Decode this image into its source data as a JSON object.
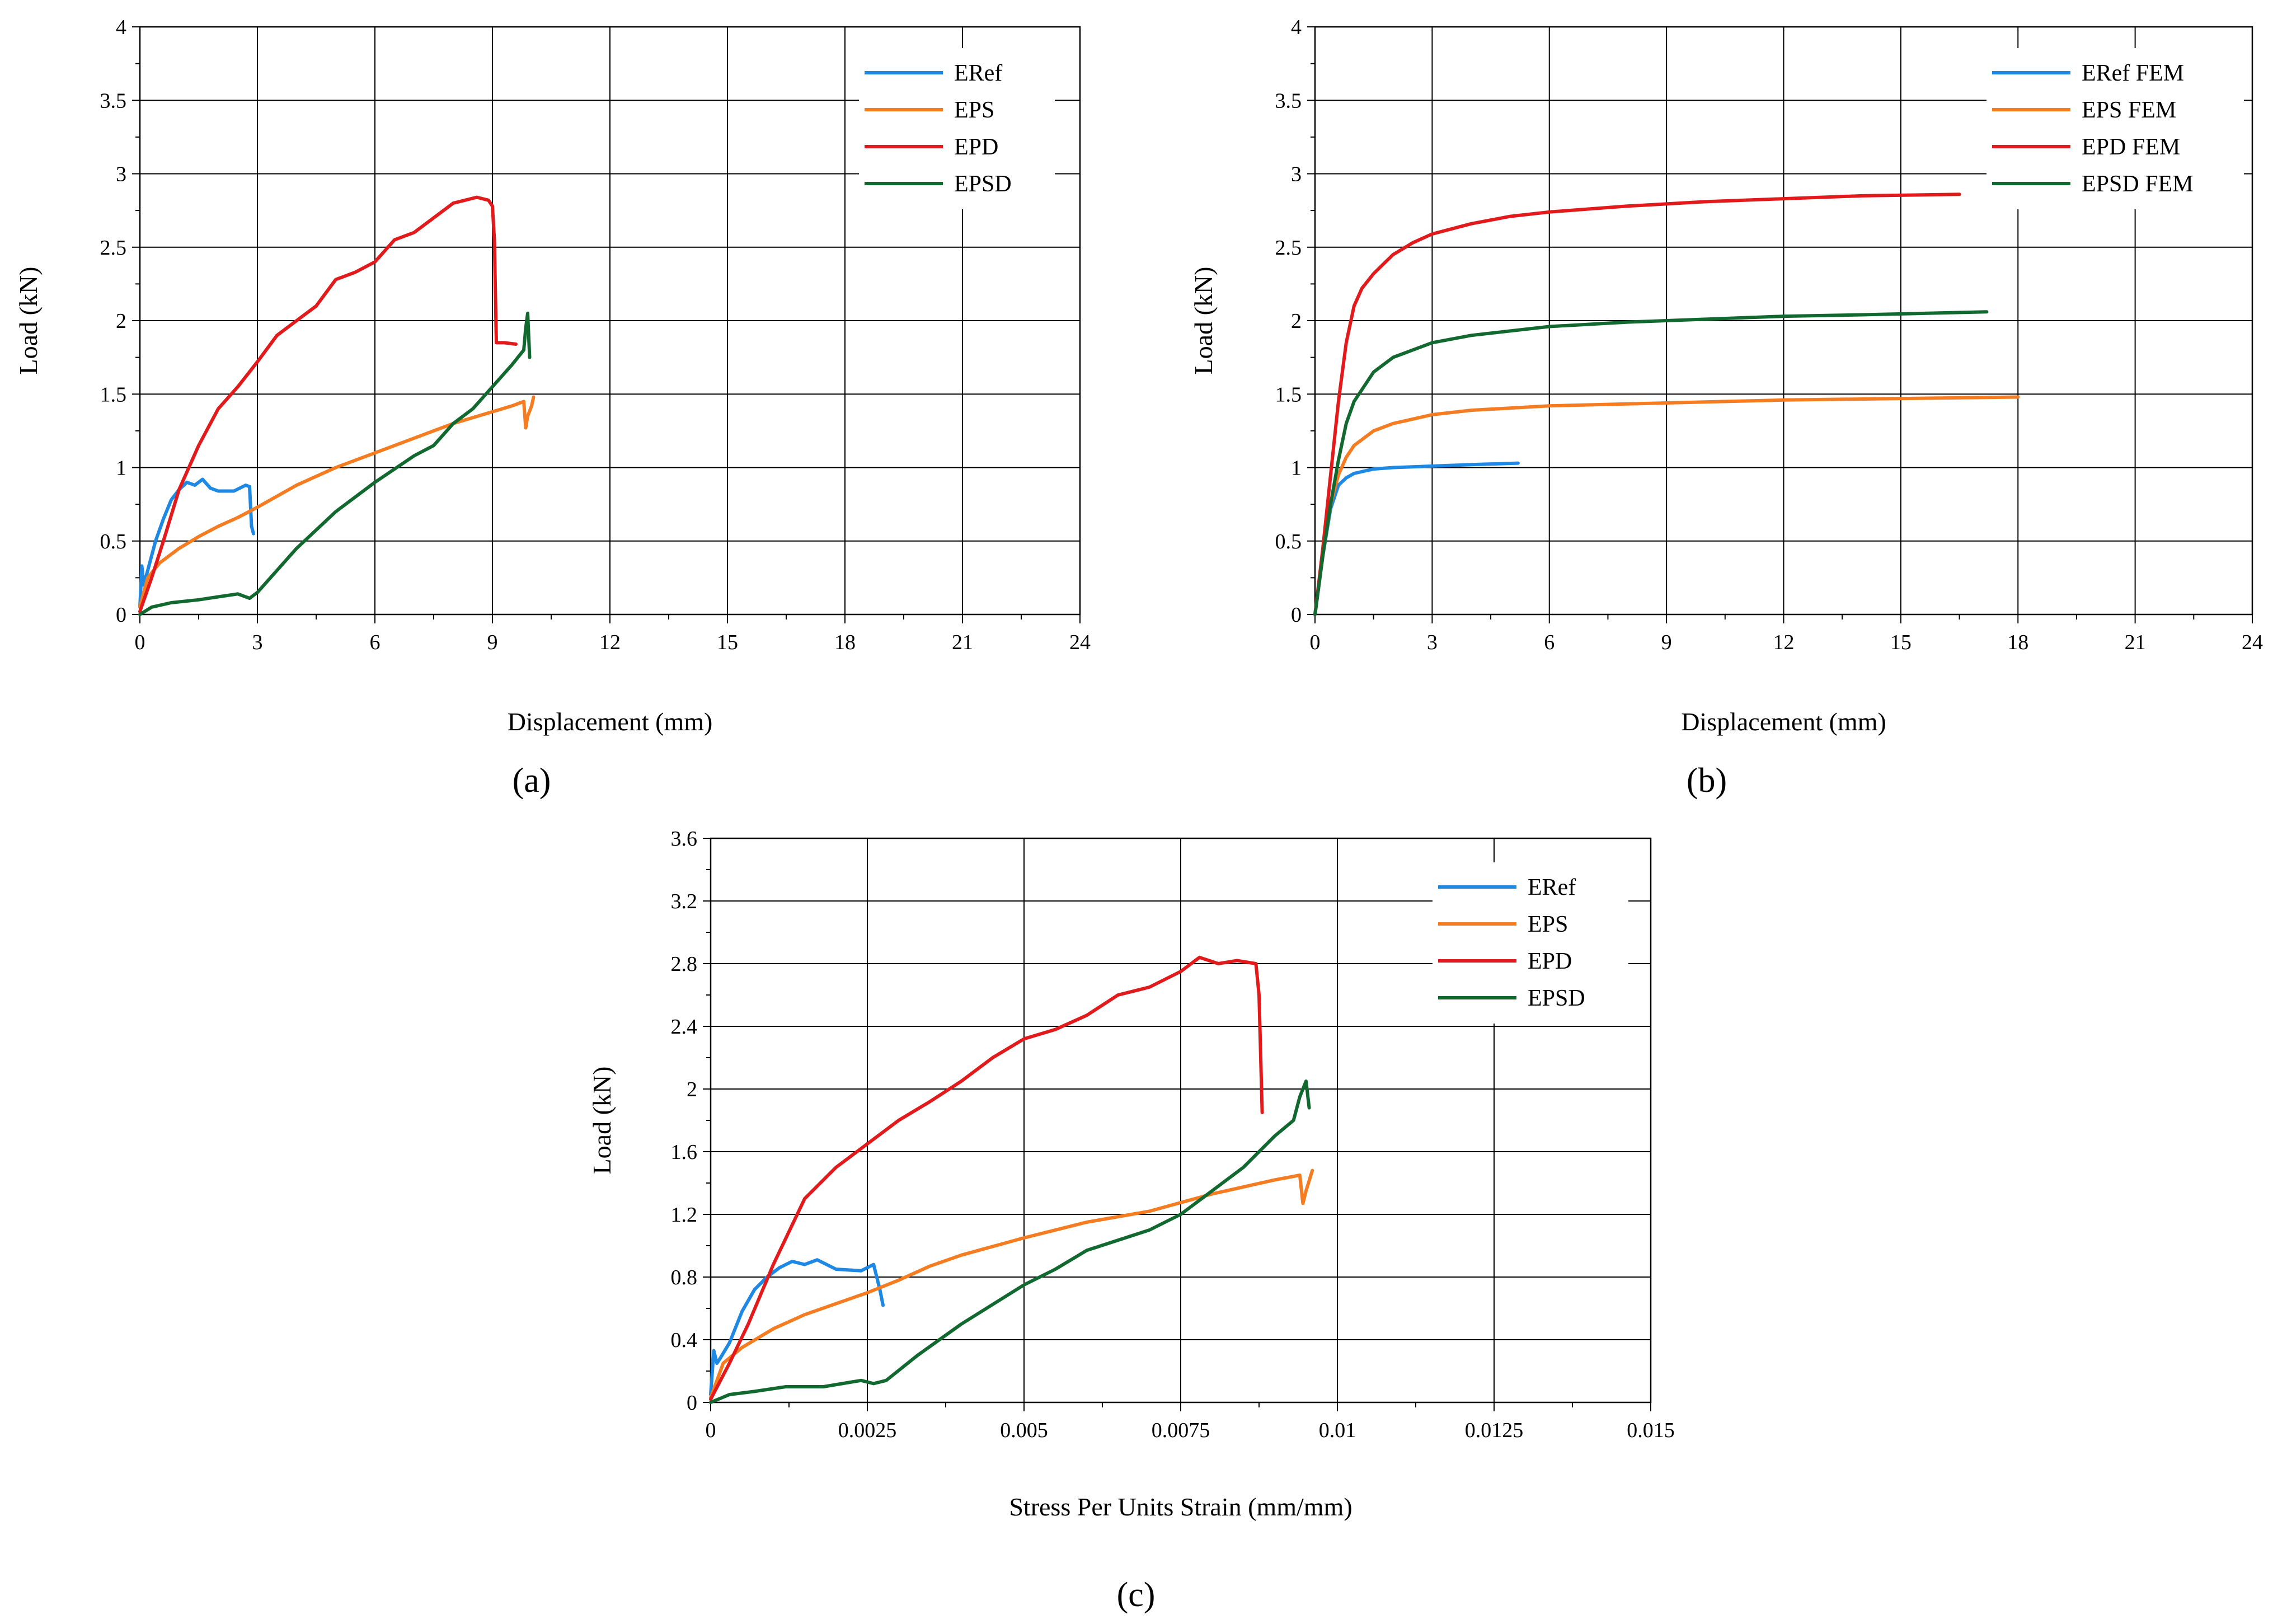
{
  "chart_data": [
    {
      "panel_label": "(a)",
      "type": "line",
      "xlabel": "Displacement (mm)",
      "ylabel": "Load (kN)",
      "xlim": [
        0,
        24
      ],
      "ylim": [
        0,
        4
      ],
      "xticks": [
        0,
        3,
        6,
        9,
        12,
        15,
        18,
        21,
        24
      ],
      "xtick_labels": [
        "0",
        "3",
        "6",
        "9",
        "12",
        "15",
        "18",
        "21",
        "24"
      ],
      "yticks": [
        0,
        0.5,
        1,
        1.5,
        2,
        2.5,
        3,
        3.5,
        4
      ],
      "ytick_labels": [
        "0",
        "0.5",
        "1",
        "1.5",
        "2",
        "2.5",
        "3",
        "3.5",
        "4"
      ],
      "grid": true,
      "legend": "top-right",
      "series": [
        {
          "name": "ERef",
          "color": "#1e88e5",
          "x": [
            0,
            0.05,
            0.1,
            0.15,
            0.25,
            0.4,
            0.6,
            0.8,
            1.0,
            1.2,
            1.4,
            1.6,
            1.8,
            2.0,
            2.4,
            2.7,
            2.8,
            2.85,
            2.9
          ],
          "y": [
            0.05,
            0.33,
            0.2,
            0.25,
            0.35,
            0.5,
            0.65,
            0.78,
            0.85,
            0.9,
            0.88,
            0.92,
            0.86,
            0.84,
            0.84,
            0.88,
            0.87,
            0.6,
            0.55
          ]
        },
        {
          "name": "EPS",
          "color": "#f57c20",
          "x": [
            0,
            0.2,
            0.5,
            1.0,
            1.5,
            2.0,
            2.5,
            3.0,
            4.0,
            5.0,
            6.0,
            7.0,
            8.0,
            9.0,
            9.5,
            9.8,
            9.85,
            9.9,
            10.0,
            10.05
          ],
          "y": [
            0.05,
            0.25,
            0.35,
            0.45,
            0.53,
            0.6,
            0.66,
            0.73,
            0.88,
            1.0,
            1.1,
            1.2,
            1.3,
            1.38,
            1.42,
            1.45,
            1.27,
            1.35,
            1.42,
            1.48
          ]
        },
        {
          "name": "EPD",
          "color": "#e31a1c",
          "x": [
            0,
            0.3,
            0.6,
            1.0,
            1.5,
            2.0,
            2.5,
            3.0,
            3.5,
            4.0,
            4.5,
            5.0,
            5.5,
            6.0,
            6.5,
            7.0,
            7.5,
            8.0,
            8.3,
            8.6,
            8.9,
            9.0,
            9.05,
            9.1,
            9.3,
            9.6
          ],
          "y": [
            0.02,
            0.25,
            0.5,
            0.85,
            1.15,
            1.4,
            1.55,
            1.72,
            1.9,
            2.0,
            2.1,
            2.28,
            2.33,
            2.4,
            2.55,
            2.6,
            2.7,
            2.8,
            2.82,
            2.84,
            2.82,
            2.78,
            2.55,
            1.85,
            1.85,
            1.84
          ]
        },
        {
          "name": "EPSD",
          "color": "#12692f",
          "x": [
            0,
            0.3,
            0.8,
            1.5,
            2.0,
            2.5,
            2.8,
            3.0,
            3.5,
            4.0,
            5.0,
            6.0,
            7.0,
            7.5,
            8.0,
            8.5,
            9.0,
            9.5,
            9.8,
            9.85,
            9.9,
            9.95
          ],
          "y": [
            0.0,
            0.05,
            0.08,
            0.1,
            0.12,
            0.14,
            0.11,
            0.15,
            0.3,
            0.45,
            0.7,
            0.9,
            1.08,
            1.15,
            1.3,
            1.4,
            1.55,
            1.7,
            1.8,
            1.95,
            2.05,
            1.75
          ]
        }
      ]
    },
    {
      "panel_label": "(b)",
      "type": "line",
      "xlabel": "Displacement (mm)",
      "ylabel": "Load (kN)",
      "xlim": [
        0,
        24
      ],
      "ylim": [
        0,
        4
      ],
      "xticks": [
        0,
        3,
        6,
        9,
        12,
        15,
        18,
        21,
        24
      ],
      "xtick_labels": [
        "0",
        "3",
        "6",
        "9",
        "12",
        "15",
        "18",
        "21",
        "24"
      ],
      "yticks": [
        0,
        0.5,
        1,
        1.5,
        2,
        2.5,
        3,
        3.5,
        4
      ],
      "ytick_labels": [
        "0",
        "0.5",
        "1",
        "1.5",
        "2",
        "2.5",
        "3",
        "3.5",
        "4"
      ],
      "grid": true,
      "legend": "top-right",
      "series": [
        {
          "name": "ERef FEM",
          "color": "#1e88e5",
          "x": [
            0,
            0.2,
            0.4,
            0.6,
            0.8,
            1.0,
            1.5,
            2.0,
            3.0,
            4.0,
            5.2
          ],
          "y": [
            0,
            0.4,
            0.72,
            0.88,
            0.93,
            0.96,
            0.99,
            1.0,
            1.01,
            1.02,
            1.03
          ]
        },
        {
          "name": "EPS FEM",
          "color": "#f57c20",
          "x": [
            0,
            0.2,
            0.4,
            0.6,
            0.8,
            1.0,
            1.5,
            2.0,
            3.0,
            4.0,
            6.0,
            9.0,
            12.0,
            15.0,
            18.0
          ],
          "y": [
            0,
            0.4,
            0.75,
            0.95,
            1.07,
            1.15,
            1.25,
            1.3,
            1.36,
            1.39,
            1.42,
            1.44,
            1.46,
            1.47,
            1.48
          ]
        },
        {
          "name": "EPD FEM",
          "color": "#e31a1c",
          "x": [
            0,
            0.2,
            0.4,
            0.6,
            0.8,
            1.0,
            1.2,
            1.5,
            2.0,
            2.5,
            3.0,
            4.0,
            5.0,
            6.0,
            8.0,
            10.0,
            12.0,
            14.0,
            16.5
          ],
          "y": [
            0,
            0.45,
            0.95,
            1.45,
            1.85,
            2.1,
            2.22,
            2.32,
            2.45,
            2.53,
            2.59,
            2.66,
            2.71,
            2.74,
            2.78,
            2.81,
            2.83,
            2.85,
            2.86
          ]
        },
        {
          "name": "EPSD FEM",
          "color": "#12692f",
          "x": [
            0,
            0.2,
            0.4,
            0.6,
            0.8,
            1.0,
            1.5,
            2.0,
            3.0,
            4.0,
            6.0,
            8.0,
            10.0,
            12.0,
            14.0,
            17.2
          ],
          "y": [
            0,
            0.4,
            0.75,
            1.05,
            1.3,
            1.45,
            1.65,
            1.75,
            1.85,
            1.9,
            1.96,
            1.99,
            2.01,
            2.03,
            2.04,
            2.06
          ]
        }
      ]
    },
    {
      "panel_label": "(c)",
      "type": "line",
      "xlabel": "Stress Per Units Strain (mm/mm)",
      "ylabel": "Load (kN)",
      "xlim": [
        0,
        0.015
      ],
      "ylim": [
        0,
        3.6
      ],
      "xticks": [
        0,
        0.0025,
        0.005,
        0.0075,
        0.01,
        0.0125,
        0.015
      ],
      "xtick_labels": [
        "0",
        "0.0025",
        "0.005",
        "0.0075",
        "0.01",
        "0.0125",
        "0.015"
      ],
      "yticks": [
        0,
        0.4,
        0.8,
        1.2,
        1.6,
        2,
        2.4,
        2.8,
        3.2,
        3.6
      ],
      "ytick_labels": [
        "0",
        "0.4",
        "0.8",
        "1.2",
        "1.6",
        "2",
        "2.4",
        "2.8",
        "3.2",
        "3.6"
      ],
      "grid": true,
      "legend": "top-right",
      "series": [
        {
          "name": "ERef",
          "color": "#1e88e5",
          "x": [
            0,
            5e-05,
            0.0001,
            0.00015,
            0.0003,
            0.0005,
            0.0007,
            0.0009,
            0.0011,
            0.0013,
            0.0015,
            0.0017,
            0.002,
            0.0024,
            0.0026,
            0.0027,
            0.00275
          ],
          "y": [
            0.05,
            0.33,
            0.25,
            0.28,
            0.38,
            0.58,
            0.72,
            0.8,
            0.86,
            0.9,
            0.88,
            0.91,
            0.85,
            0.84,
            0.88,
            0.72,
            0.62
          ]
        },
        {
          "name": "EPS",
          "color": "#f57c20",
          "x": [
            0,
            0.0002,
            0.0005,
            0.001,
            0.0015,
            0.002,
            0.0025,
            0.003,
            0.0035,
            0.004,
            0.005,
            0.006,
            0.007,
            0.008,
            0.009,
            0.0094,
            0.00945,
            0.0095,
            0.0096
          ],
          "y": [
            0.03,
            0.25,
            0.35,
            0.47,
            0.56,
            0.63,
            0.7,
            0.78,
            0.87,
            0.94,
            1.05,
            1.15,
            1.22,
            1.33,
            1.42,
            1.45,
            1.27,
            1.35,
            1.48
          ]
        },
        {
          "name": "EPD",
          "color": "#e31a1c",
          "x": [
            0,
            0.0003,
            0.0006,
            0.001,
            0.0015,
            0.002,
            0.0025,
            0.003,
            0.0035,
            0.004,
            0.0045,
            0.005,
            0.0055,
            0.006,
            0.0065,
            0.007,
            0.0075,
            0.0078,
            0.0081,
            0.0084,
            0.0087,
            0.00875,
            0.0088
          ],
          "y": [
            0.02,
            0.25,
            0.5,
            0.88,
            1.3,
            1.5,
            1.65,
            1.8,
            1.92,
            2.05,
            2.2,
            2.32,
            2.38,
            2.47,
            2.6,
            2.65,
            2.75,
            2.84,
            2.8,
            2.82,
            2.8,
            2.6,
            1.85
          ]
        },
        {
          "name": "EPSD",
          "color": "#12692f",
          "x": [
            0,
            0.0003,
            0.0007,
            0.0012,
            0.0018,
            0.0024,
            0.0026,
            0.0028,
            0.0033,
            0.004,
            0.005,
            0.0055,
            0.006,
            0.007,
            0.0075,
            0.008,
            0.0085,
            0.009,
            0.0093,
            0.0094,
            0.0095,
            0.00955
          ],
          "y": [
            0.0,
            0.05,
            0.07,
            0.1,
            0.1,
            0.14,
            0.12,
            0.14,
            0.3,
            0.5,
            0.75,
            0.85,
            0.97,
            1.1,
            1.2,
            1.35,
            1.5,
            1.7,
            1.8,
            1.95,
            2.05,
            1.88
          ]
        }
      ]
    }
  ]
}
